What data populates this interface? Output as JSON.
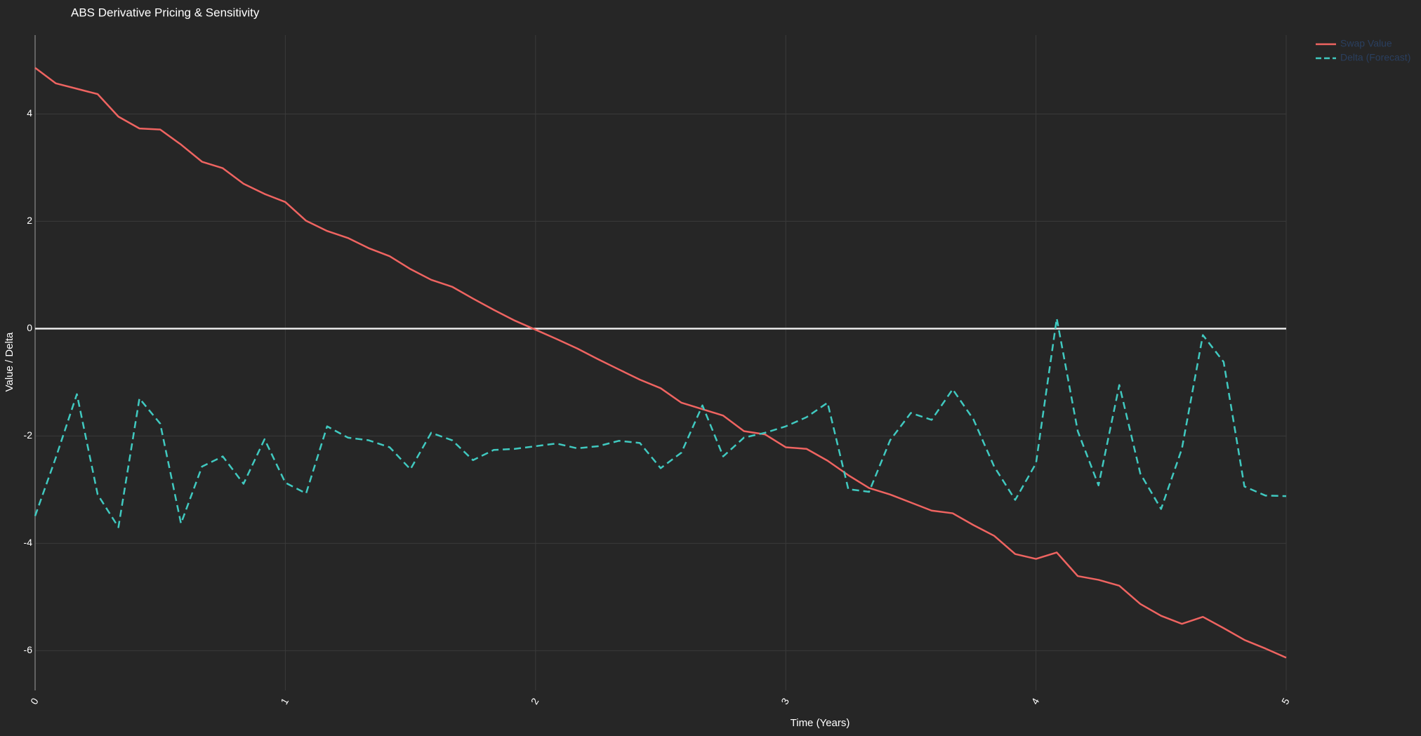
{
  "chart_data": {
    "type": "line",
    "title": "ABS Derivative Pricing & Sensitivity",
    "x_label": "Time (Years)",
    "y_label": "Value / Delta",
    "x": [
      0,
      0.083,
      0.167,
      0.25,
      0.333,
      0.417,
      0.5,
      0.583,
      0.667,
      0.75,
      0.833,
      0.917,
      1,
      1.083,
      1.167,
      1.25,
      1.333,
      1.417,
      1.5,
      1.583,
      1.667,
      1.75,
      1.833,
      1.917,
      2,
      2.083,
      2.167,
      2.25,
      2.333,
      2.417,
      2.5,
      2.583,
      2.667,
      2.75,
      2.833,
      2.917,
      3,
      3.083,
      3.167,
      3.25,
      3.333,
      3.417,
      3.5,
      3.583,
      3.667,
      3.75,
      3.833,
      3.917,
      4,
      4.083,
      4.167,
      4.25,
      4.333,
      4.417,
      4.5,
      4.583,
      4.667,
      4.75,
      4.833,
      4.917,
      5
    ],
    "series": [
      {
        "name": "Swap Value",
        "color": "#ef6461",
        "dash": false,
        "values": [
          4.86,
          4.57,
          4.47,
          4.37,
          3.95,
          3.73,
          3.71,
          3.43,
          3.11,
          2.99,
          2.7,
          2.51,
          2.36,
          2.01,
          1.82,
          1.69,
          1.5,
          1.35,
          1.11,
          0.91,
          0.78,
          0.56,
          0.35,
          0.15,
          -0.02,
          -0.19,
          -0.37,
          -0.57,
          -0.76,
          -0.95,
          -1.11,
          -1.38,
          -1.5,
          -1.62,
          -1.91,
          -1.97,
          -2.21,
          -2.24,
          -2.46,
          -2.73,
          -2.97,
          -3.09,
          -3.24,
          -3.39,
          -3.44,
          -3.66,
          -3.86,
          -4.2,
          -4.29,
          -4.17,
          -4.61,
          -4.68,
          -4.79,
          -5.13,
          -5.35,
          -5.5,
          -5.37,
          -5.58,
          -5.8,
          -5.96,
          -6.13
        ]
      },
      {
        "name": "Delta (Forecast)",
        "color": "#40c9c0",
        "dash": true,
        "values": [
          -3.49,
          -2.4,
          -1.22,
          -3.09,
          -3.7,
          -1.3,
          -1.77,
          -3.63,
          -2.57,
          -2.38,
          -2.89,
          -2.06,
          -2.87,
          -3.07,
          -1.82,
          -2.03,
          -2.08,
          -2.21,
          -2.62,
          -1.94,
          -2.08,
          -2.45,
          -2.26,
          -2.24,
          -2.19,
          -2.14,
          -2.23,
          -2.19,
          -2.09,
          -2.13,
          -2.6,
          -2.31,
          -1.43,
          -2.38,
          -2.03,
          -1.94,
          -1.82,
          -1.65,
          -1.38,
          -2.99,
          -3.04,
          -2.08,
          -1.57,
          -1.7,
          -1.13,
          -1.69,
          -2.57,
          -3.19,
          -2.51,
          0.19,
          -1.91,
          -2.92,
          -1.05,
          -2.7,
          -3.36,
          -2.24,
          -0.12,
          -0.62,
          -2.94,
          -3.11,
          -3.12
        ]
      }
    ],
    "xlim": [
      0,
      5
    ],
    "xticks": [
      0,
      1,
      2,
      3,
      4,
      5
    ],
    "ylim": [
      -6.74,
      5.47
    ],
    "yticks": [
      -6,
      -4,
      -2,
      0,
      2,
      4
    ],
    "grid": true,
    "zeroline": true,
    "legend": "top-right"
  }
}
